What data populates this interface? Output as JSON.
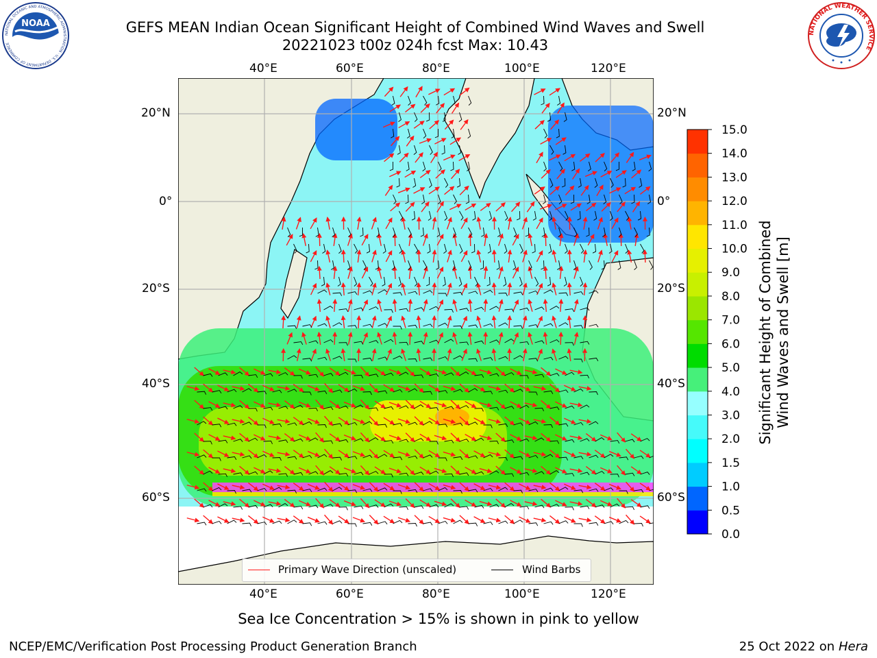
{
  "title": {
    "line1": "GEFS MEAN Indian Ocean Significant Height of Combined Wind Waves and Swell",
    "line2": "20221023 t00z 024h fcst   Max: 10.43"
  },
  "logos": {
    "noaa_text": "NOAA",
    "noaa_ring": "NATIONAL OCEANIC AND ATMOSPHERIC ADMINISTRATION · U.S. DEPARTMENT OF COMMERCE",
    "nws_ring": "NATIONAL WEATHER SERVICE"
  },
  "map": {
    "lon_labels": [
      "40°E",
      "60°E",
      "80°E",
      "100°E",
      "120°E"
    ],
    "lat_labels": [
      "20°N",
      "0°",
      "20°S",
      "40°S",
      "60°S"
    ],
    "colors": {
      "land": "#efefdf",
      "ocean_background": "#8cf5f5",
      "coastline": "#000000",
      "grid": "#b0b0b0",
      "wave_arrow": "#ff1a1a",
      "wind_barb": "#000000",
      "sea_ice": [
        "#ff44ff",
        "#ffa0c8",
        "#ffe600"
      ]
    },
    "wave_height_bands": [
      {
        "label": "0.5-1 m",
        "color": "#0066ff"
      },
      {
        "label": "2-3 m",
        "color": "#8cf5f5"
      },
      {
        "label": "3-4 m",
        "color": "#3cf07a"
      },
      {
        "label": "4-6 m",
        "color": "#32dc00"
      },
      {
        "label": "6-8 m",
        "color": "#a8f000"
      },
      {
        "label": "8-10.43 m",
        "color": "#e8f000"
      },
      {
        "label": "max 10.43 m",
        "color": "#ffb400"
      }
    ]
  },
  "colorbar": {
    "title": "Significant Height of Combined Wind Waves and Swell [m]",
    "title_line1": "Significant Height of Combined",
    "title_line2": "Wind Waves and Swell [m]",
    "ticks": [
      "0.0",
      "0.5",
      "1.0",
      "1.5",
      "2.0",
      "3.0",
      "4.0",
      "5.0",
      "6.0",
      "7.0",
      "8.0",
      "9.0",
      "10.0",
      "11.0",
      "12.0",
      "13.0",
      "14.0",
      "15.0"
    ],
    "colors": [
      "#0000ff",
      "#0066ff",
      "#00ccff",
      "#00ffff",
      "#46fafa",
      "#96ffff",
      "#46f07a",
      "#00dc00",
      "#55e600",
      "#9be600",
      "#c8f000",
      "#e6f000",
      "#ffe600",
      "#ffb400",
      "#ff8c00",
      "#ff6400",
      "#ff3200"
    ]
  },
  "legend": {
    "wave_direction": "Primary Wave Direction (unscaled)",
    "wind_barbs": "Wind Barbs"
  },
  "footer": {
    "ice_note": "Sea Ice Concentration > 15% is shown in pink to yellow",
    "left": "NCEP/EMC/Verification Post Processing Product Generation Branch",
    "right_date": "25 Oct 2022 on ",
    "right_host": "Hera"
  }
}
